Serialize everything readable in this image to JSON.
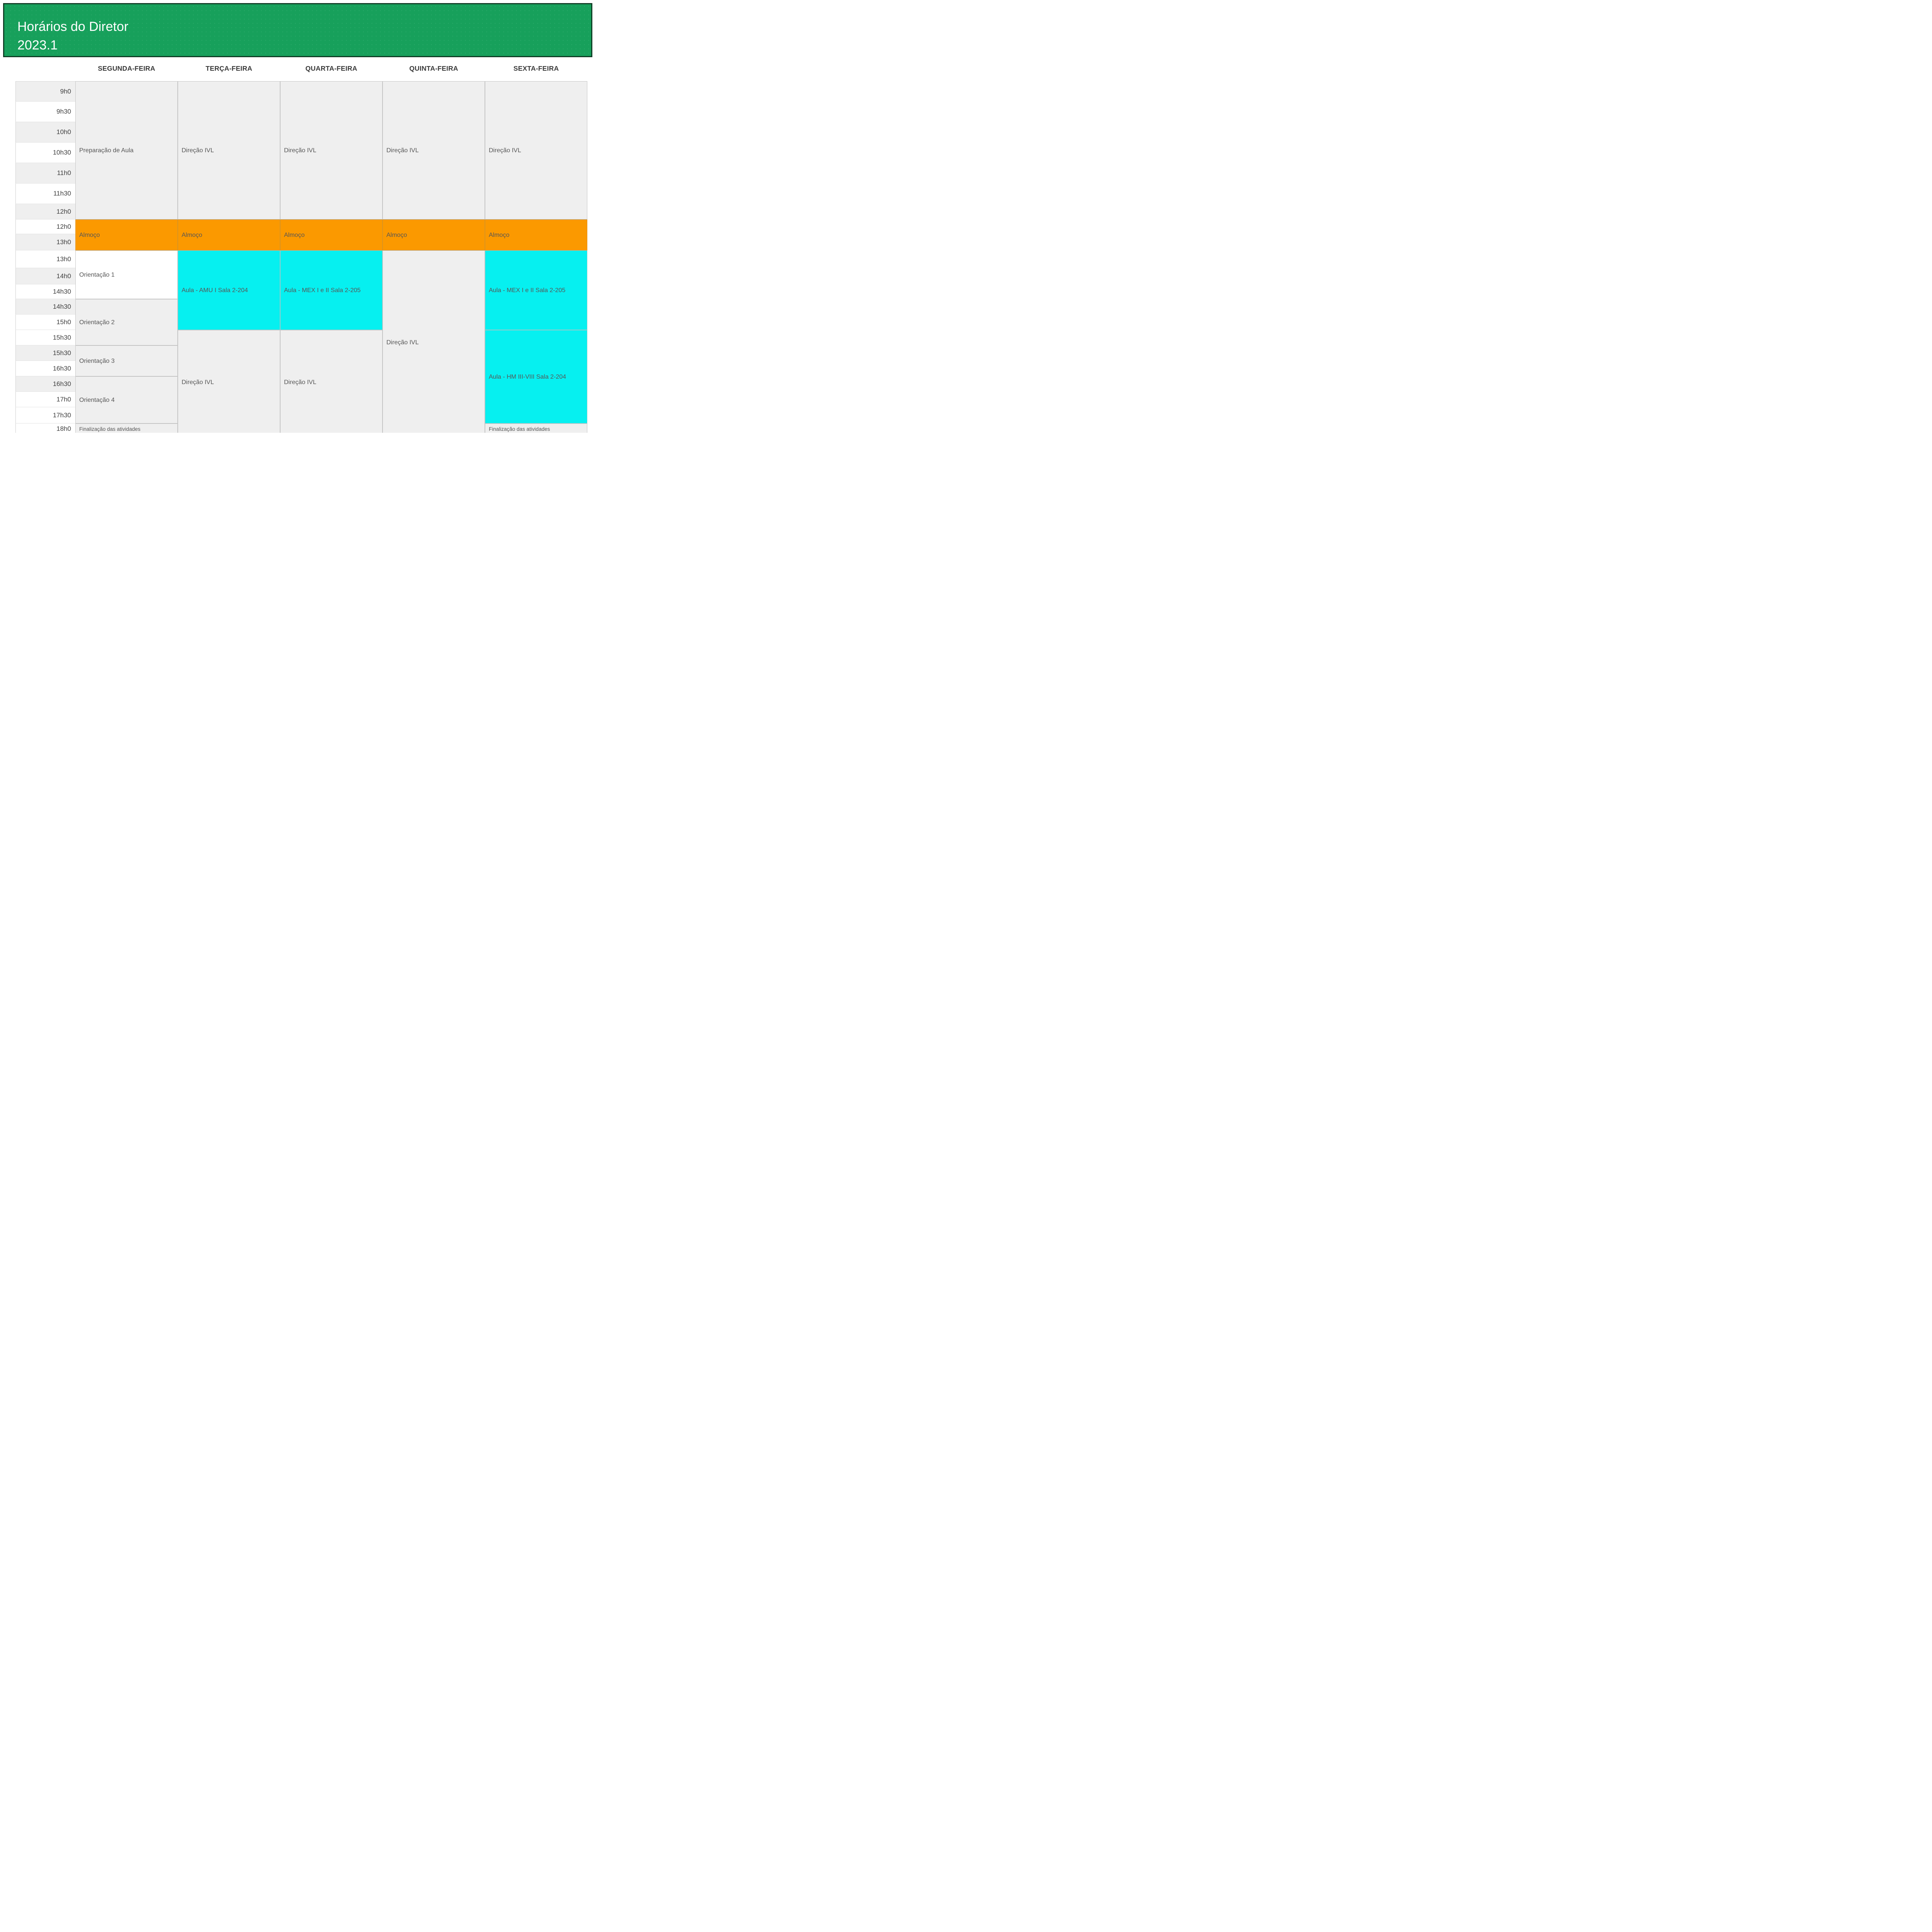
{
  "header": {
    "title_line1": "Horários do Diretor",
    "title_line2": "2023.1"
  },
  "colors": {
    "green": "#17A05B",
    "green_border": "#0F3D25",
    "orange": "#FB9900",
    "cyan": "#06F0F0",
    "gray_cell": "#EFEFEF",
    "event_text": "#565656",
    "day_header_text": "#3A3A3A",
    "time_text": "#3F3F3F"
  },
  "time_rows": [
    {
      "label": "9h0",
      "shade": "gray"
    },
    {
      "label": "9h30",
      "shade": "white"
    },
    {
      "label": "10h0",
      "shade": "gray"
    },
    {
      "label": "10h30",
      "shade": "white"
    },
    {
      "label": "11h0",
      "shade": "gray"
    },
    {
      "label": "11h30",
      "shade": "white"
    },
    {
      "label": "12h0",
      "shade": "gray"
    },
    {
      "label": "12h0",
      "shade": "white"
    },
    {
      "label": "13h0",
      "shade": "gray"
    },
    {
      "label": "13h0",
      "shade": "white"
    },
    {
      "label": "14h0",
      "shade": "gray"
    },
    {
      "label": "14h30",
      "shade": "white"
    },
    {
      "label": "14h30",
      "shade": "gray"
    },
    {
      "label": "15h0",
      "shade": "white"
    },
    {
      "label": "15h30",
      "shade": "white"
    },
    {
      "label": "15h30",
      "shade": "gray"
    },
    {
      "label": "16h30",
      "shade": "white"
    },
    {
      "label": "16h30",
      "shade": "gray"
    },
    {
      "label": "17h0",
      "shade": "white"
    },
    {
      "label": "17h30",
      "shade": "white"
    },
    {
      "label": "18h0",
      "shade": "white"
    }
  ],
  "days": [
    {
      "label": "SEGUNDA-FEIRA",
      "events": [
        {
          "label": "Preparação de Aula",
          "row_start": 1,
          "row_span": 7,
          "type": "gray"
        },
        {
          "label": "Almoço",
          "row_start": 8,
          "row_span": 2,
          "type": "lunch"
        },
        {
          "label": "Orientação 1",
          "row_start": 10,
          "row_span": 3,
          "type": "white"
        },
        {
          "label": "Orientação 2",
          "row_start": 13,
          "row_span": 3,
          "type": "gray"
        },
        {
          "label": "Orientação 3",
          "row_start": 16,
          "row_span": 2,
          "type": "gray"
        },
        {
          "label": "Orientação 4",
          "row_start": 18,
          "row_span": 3,
          "type": "gray"
        },
        {
          "label": "Finalização das atividades",
          "row_start": 21,
          "row_span": 1,
          "type": "final"
        }
      ]
    },
    {
      "label": "TERÇA-FEIRA",
      "events": [
        {
          "label": "Direção IVL",
          "row_start": 1,
          "row_span": 7,
          "type": "gray"
        },
        {
          "label": "Almoço",
          "row_start": 8,
          "row_span": 2,
          "type": "lunch"
        },
        {
          "label": "Aula - AMU I Sala 2-204",
          "row_start": 10,
          "row_span": 5,
          "type": "class"
        },
        {
          "label": "Direção IVL",
          "row_start": 15,
          "row_span": 7,
          "type": "gray"
        }
      ]
    },
    {
      "label": "QUARTA-FEIRA",
      "events": [
        {
          "label": "Direção IVL",
          "row_start": 1,
          "row_span": 7,
          "type": "gray"
        },
        {
          "label": "Almoço",
          "row_start": 8,
          "row_span": 2,
          "type": "lunch"
        },
        {
          "label": "Aula - MEX I e II Sala 2-205",
          "row_start": 10,
          "row_span": 5,
          "type": "class"
        },
        {
          "label": "Direção IVL",
          "row_start": 15,
          "row_span": 7,
          "type": "gray"
        }
      ]
    },
    {
      "label": "QUINTA-FEIRA",
      "events": [
        {
          "label": "Direção IVL",
          "row_start": 1,
          "row_span": 7,
          "type": "gray"
        },
        {
          "label": "Almoço",
          "row_start": 8,
          "row_span": 2,
          "type": "lunch"
        },
        {
          "label": "Direção IVL",
          "row_start": 10,
          "row_span": 12,
          "type": "gray"
        }
      ]
    },
    {
      "label": "SEXTA-FEIRA",
      "events": [
        {
          "label": "Direção IVL",
          "row_start": 1,
          "row_span": 7,
          "type": "gray"
        },
        {
          "label": "Almoço",
          "row_start": 8,
          "row_span": 2,
          "type": "lunch"
        },
        {
          "label": "Aula - MEX I e II Sala 2-205",
          "row_start": 10,
          "row_span": 5,
          "type": "class"
        },
        {
          "label": "Aula - HM III-VIII Sala 2-204",
          "row_start": 15,
          "row_span": 6,
          "type": "class"
        },
        {
          "label": "Finalização das atividades",
          "row_start": 21,
          "row_span": 1,
          "type": "final"
        }
      ]
    }
  ]
}
